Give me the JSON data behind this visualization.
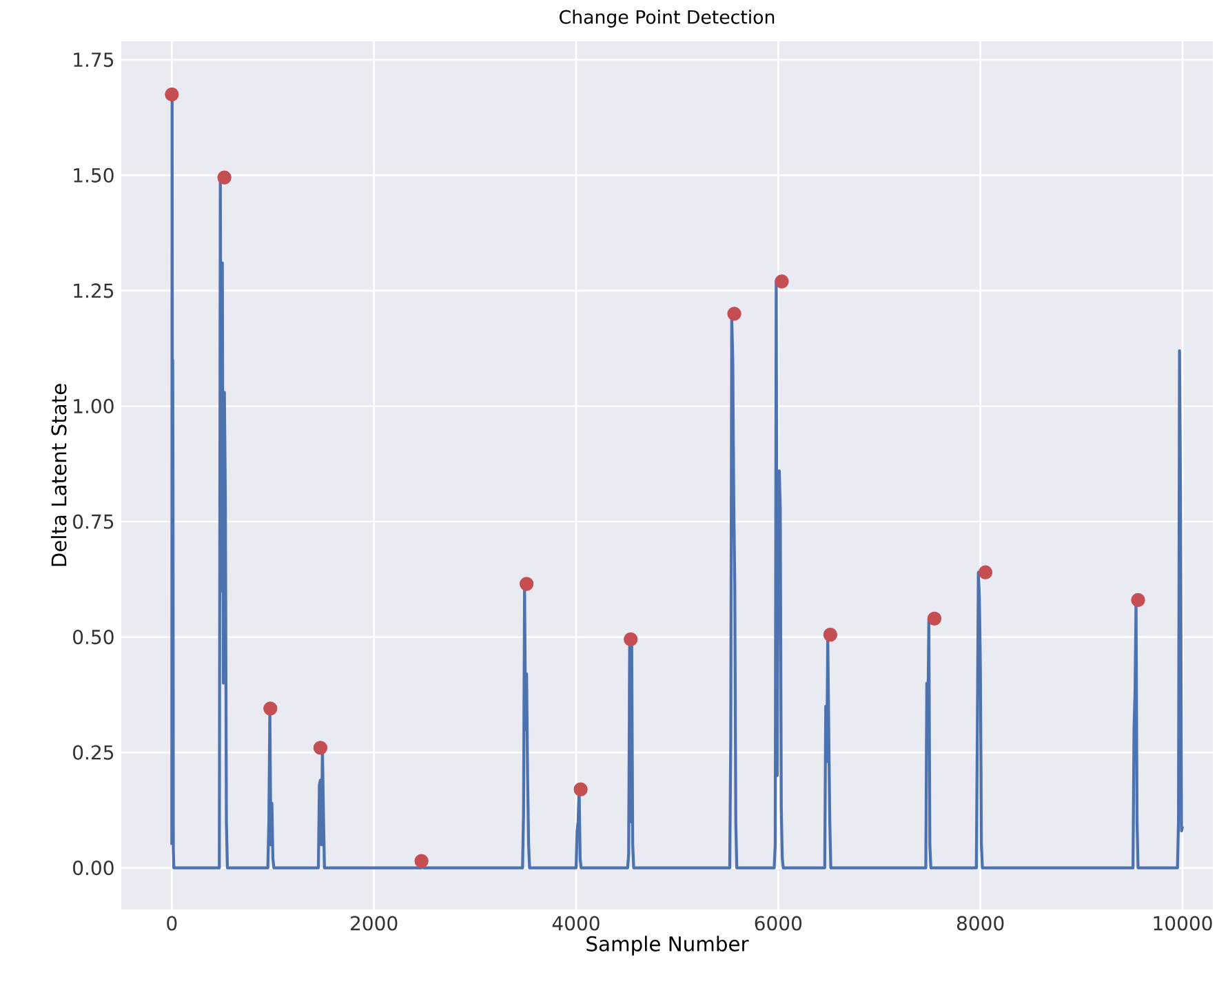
{
  "chart_data": {
    "type": "line",
    "title": "Change Point Detection",
    "xlabel": "Sample Number",
    "ylabel": "Delta Latent State",
    "grid": true,
    "xlim": [
      -500,
      10300
    ],
    "ylim": [
      -0.09,
      1.79
    ],
    "xticks": [
      0,
      2000,
      4000,
      6000,
      8000,
      10000
    ],
    "yticks": [
      {
        "value": 0,
        "label": "0.00"
      },
      {
        "value": 0.25,
        "label": "0.25"
      },
      {
        "value": 0.5,
        "label": "0.50"
      },
      {
        "value": 0.75,
        "label": "0.75"
      },
      {
        "value": 1.0,
        "label": "1.00"
      },
      {
        "value": 1.25,
        "label": "1.25"
      },
      {
        "value": 1.5,
        "label": "1.50"
      },
      {
        "value": 1.75,
        "label": "1.75"
      }
    ],
    "series": [
      {
        "color": "#4c72b0",
        "marker": "none",
        "x": [
          0,
          3,
          6,
          9,
          12,
          15,
          20,
          25,
          470,
          480,
          490,
          500,
          510,
          520,
          530,
          540,
          550,
          950,
          960,
          970,
          980,
          990,
          1000,
          1010,
          1450,
          1460,
          1470,
          1480,
          1490,
          1500,
          1510,
          2470,
          2480,
          2490,
          3470,
          3480,
          3490,
          3500,
          3510,
          3520,
          3530,
          3540,
          4000,
          4010,
          4020,
          4030,
          4040,
          4050,
          4510,
          4520,
          4530,
          4540,
          4550,
          4560,
          4570,
          5520,
          5530,
          5540,
          5550,
          5560,
          5570,
          5580,
          5590,
          5960,
          5970,
          5980,
          5990,
          6000,
          6010,
          6020,
          6030,
          6040,
          6050,
          6460,
          6470,
          6480,
          6490,
          6500,
          6510,
          6520,
          6530,
          7460,
          7470,
          7480,
          7490,
          7500,
          7510,
          7520,
          7530,
          7960,
          7970,
          7980,
          7990,
          8000,
          8010,
          8020,
          8030,
          8040,
          9510,
          9520,
          9530,
          9540,
          9550,
          9560,
          9570,
          9940,
          9950,
          9960,
          9970,
          9980,
          9990,
          10000
        ],
        "values": [
          0.05,
          1.67,
          0.7,
          1.1,
          0.78,
          0.04,
          0,
          0,
          0,
          1.49,
          0.6,
          1.31,
          0.4,
          1.03,
          0.79,
          0.1,
          0,
          0,
          0.1,
          0.34,
          0.05,
          0.14,
          0.02,
          0,
          0,
          0.18,
          0.19,
          0.05,
          0.26,
          0.12,
          0,
          0,
          0.015,
          0,
          0,
          0.12,
          0.61,
          0.3,
          0.42,
          0.2,
          0.05,
          0,
          0,
          0.08,
          0.1,
          0.17,
          0.02,
          0,
          0,
          0.03,
          0.49,
          0.1,
          0.49,
          0.05,
          0,
          0,
          0.28,
          1.19,
          1.1,
          0.79,
          0.61,
          0.1,
          0,
          0,
          0.05,
          1.27,
          0.2,
          0.85,
          0.86,
          0.78,
          0.13,
          0.02,
          0,
          0,
          0.35,
          0.23,
          0.5,
          0.29,
          0.1,
          0,
          0,
          0,
          0.4,
          0.32,
          0.54,
          0.05,
          0,
          0,
          0,
          0,
          0.3,
          0.64,
          0.59,
          0.43,
          0.05,
          0,
          0,
          0,
          0,
          0.3,
          0.38,
          0.57,
          0.1,
          0,
          0,
          0,
          0,
          0.1,
          1.12,
          0.81,
          0.08,
          0.09
        ]
      },
      {
        "type": "scatter",
        "color": "#c44e52",
        "marker": "circle",
        "x": [
          0,
          520,
          975,
          1470,
          2470,
          3510,
          4045,
          4540,
          5565,
          6035,
          6515,
          7545,
          8050,
          9560
        ],
        "values": [
          1.675,
          1.495,
          0.345,
          0.26,
          0.015,
          0.615,
          0.17,
          0.495,
          1.2,
          1.27,
          0.505,
          0.54,
          0.64,
          0.58
        ]
      }
    ]
  }
}
